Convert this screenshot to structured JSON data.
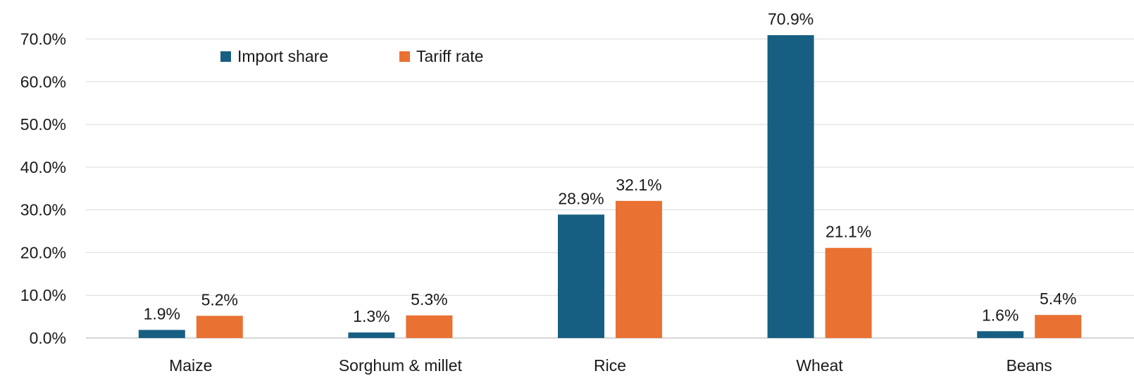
{
  "chart_data": {
    "type": "bar",
    "categories": [
      "Maize",
      "Sorghum & millet",
      "Rice",
      "Wheat",
      "Beans"
    ],
    "series": [
      {
        "name": "Import share",
        "color": "#175f82",
        "values": [
          1.9,
          1.3,
          28.9,
          70.9,
          1.6
        ],
        "labels": [
          "1.9%",
          "1.3%",
          "28.9%",
          "70.9%",
          "1.6%"
        ]
      },
      {
        "name": "Tariff rate",
        "color": "#e97132",
        "values": [
          5.2,
          5.3,
          32.1,
          21.1,
          5.4
        ],
        "labels": [
          "5.2%",
          "5.3%",
          "32.1%",
          "21.1%",
          "5.4%"
        ]
      }
    ],
    "y_ticks": [
      0,
      10,
      20,
      30,
      40,
      50,
      60,
      70
    ],
    "y_tick_labels": [
      "0.0%",
      "10.0%",
      "20.0%",
      "30.0%",
      "40.0%",
      "50.0%",
      "60.0%",
      "70.0%"
    ],
    "ylim": [
      0,
      70
    ],
    "grid": true,
    "legend_position": "top-left"
  }
}
